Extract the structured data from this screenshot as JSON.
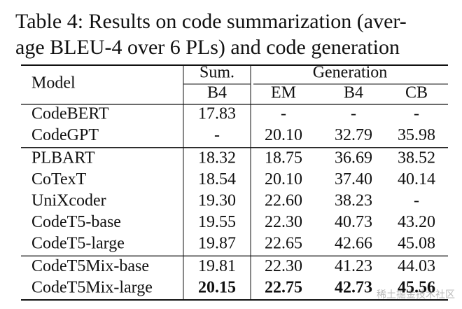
{
  "caption": {
    "lines": [
      "Table 4: Results on code summarization (aver-",
      "age BLEU-4 over 6 PLs) and code generation"
    ]
  },
  "table": {
    "header": {
      "model": "Model",
      "sum": "Sum.",
      "generation": "Generation",
      "columns": [
        "B4",
        "EM",
        "B4",
        "CB"
      ]
    },
    "groups": [
      {
        "rows": [
          [
            "CodeBERT",
            "17.83",
            "-",
            "-",
            "-"
          ],
          [
            "CodeGPT",
            "-",
            "20.10",
            "32.79",
            "35.98"
          ]
        ]
      },
      {
        "rows": [
          [
            "PLBART",
            "18.32",
            "18.75",
            "36.69",
            "38.52"
          ],
          [
            "CoTexT",
            "18.54",
            "20.10",
            "37.40",
            "40.14"
          ],
          [
            "UniXcoder",
            "19.30",
            "22.60",
            "38.23",
            "-"
          ],
          [
            "CodeT5-base",
            "19.55",
            "22.30",
            "40.73",
            "43.20"
          ],
          [
            "CodeT5-large",
            "19.87",
            "22.65",
            "42.66",
            "45.08"
          ]
        ]
      },
      {
        "rows": [
          [
            "CodeT5Mix-base",
            "19.81",
            "22.30",
            "41.23",
            "44.03"
          ],
          [
            "CodeT5Mix-large",
            "20.15",
            "22.75",
            "42.73",
            "45.56"
          ]
        ]
      }
    ]
  },
  "watermark": "稀土掘金技术社区"
}
